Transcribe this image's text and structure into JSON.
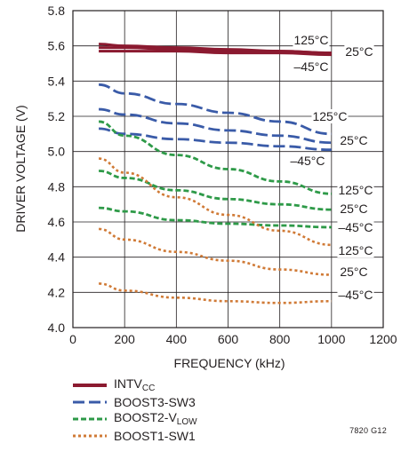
{
  "chart_data": {
    "type": "line",
    "title": "",
    "xlabel": "FREQUENCY (kHz)",
    "ylabel": "DRIVER VOLTAGE (V)",
    "xlim": [
      0,
      1200
    ],
    "ylim": [
      4.0,
      5.8
    ],
    "x_ticks": [
      "0",
      "200",
      "400",
      "600",
      "800",
      "1000",
      "1200"
    ],
    "y_ticks": [
      "4.0",
      "4.2",
      "4.4",
      "4.6",
      "4.8",
      "5.0",
      "5.2",
      "5.4",
      "5.6",
      "5.8"
    ],
    "grid": true,
    "legend_position": "bottom-left",
    "series": [
      {
        "name": "INTVCC",
        "name_main": "INTV",
        "name_sub": "CC",
        "style": "solid",
        "color": "#8b1a30",
        "temperature": "125°C",
        "x": [
          100,
          200,
          400,
          600,
          800,
          1000
        ],
        "y": [
          5.61,
          5.6,
          5.59,
          5.58,
          5.57,
          5.56
        ]
      },
      {
        "name": "INTVCC",
        "name_main": "INTV",
        "name_sub": "CC",
        "style": "solid",
        "color": "#8b1a30",
        "temperature": "25°C",
        "x": [
          100,
          200,
          400,
          600,
          800,
          1000
        ],
        "y": [
          5.59,
          5.59,
          5.58,
          5.57,
          5.57,
          5.56
        ]
      },
      {
        "name": "INTVCC",
        "name_main": "INTV",
        "name_sub": "CC",
        "style": "solid",
        "color": "#8b1a30",
        "temperature": "-45°C",
        "x": [
          100,
          200,
          400,
          600,
          800,
          1000
        ],
        "y": [
          5.57,
          5.57,
          5.57,
          5.56,
          5.56,
          5.55
        ]
      },
      {
        "name": "BOOST3-SW3",
        "style": "longdash",
        "color": "#3a5ba8",
        "temperature": "125°C",
        "x": [
          100,
          200,
          400,
          600,
          800,
          1000
        ],
        "y": [
          5.38,
          5.33,
          5.27,
          5.22,
          5.17,
          5.1
        ]
      },
      {
        "name": "BOOST3-SW3",
        "style": "longdash",
        "color": "#3a5ba8",
        "temperature": "25°C",
        "x": [
          100,
          200,
          400,
          600,
          800,
          1000
        ],
        "y": [
          5.24,
          5.21,
          5.16,
          5.12,
          5.09,
          5.05
        ]
      },
      {
        "name": "BOOST3-SW3",
        "style": "longdash",
        "color": "#3a5ba8",
        "temperature": "-45°C",
        "x": [
          100,
          200,
          400,
          600,
          800,
          1000
        ],
        "y": [
          5.13,
          5.1,
          5.07,
          5.05,
          5.03,
          5.01
        ]
      },
      {
        "name": "BOOST2-VLOW",
        "name_main": "BOOST2-V",
        "name_sub": "LOW",
        "style": "shortdash",
        "color": "#2e9a48",
        "temperature": "125°C",
        "x": [
          100,
          200,
          400,
          600,
          800,
          1000
        ],
        "y": [
          5.17,
          5.09,
          4.98,
          4.9,
          4.83,
          4.76
        ]
      },
      {
        "name": "BOOST2-VLOW",
        "name_main": "BOOST2-V",
        "name_sub": "LOW",
        "style": "shortdash",
        "color": "#2e9a48",
        "temperature": "25°C",
        "x": [
          100,
          200,
          400,
          600,
          800,
          1000
        ],
        "y": [
          4.89,
          4.85,
          4.78,
          4.73,
          4.7,
          4.67
        ]
      },
      {
        "name": "BOOST2-VLOW",
        "name_main": "BOOST2-V",
        "name_sub": "LOW",
        "style": "shortdash",
        "color": "#2e9a48",
        "temperature": "-45°C",
        "x": [
          100,
          200,
          400,
          600,
          800,
          1000
        ],
        "y": [
          4.68,
          4.66,
          4.61,
          4.59,
          4.58,
          4.57
        ]
      },
      {
        "name": "BOOST1-SW1",
        "style": "dotted",
        "color": "#d07a36",
        "temperature": "125°C",
        "x": [
          100,
          200,
          400,
          600,
          800,
          1000
        ],
        "y": [
          4.96,
          4.88,
          4.74,
          4.64,
          4.55,
          4.47
        ]
      },
      {
        "name": "BOOST1-SW1",
        "style": "dotted",
        "color": "#d07a36",
        "temperature": "25°C",
        "x": [
          100,
          200,
          400,
          600,
          800,
          1000
        ],
        "y": [
          4.56,
          4.5,
          4.43,
          4.38,
          4.33,
          4.3
        ]
      },
      {
        "name": "BOOST1-SW1",
        "style": "dotted",
        "color": "#d07a36",
        "temperature": "-45°C",
        "x": [
          100,
          200,
          400,
          600,
          800,
          1000
        ],
        "y": [
          4.25,
          4.21,
          4.17,
          4.15,
          4.14,
          4.15
        ]
      }
    ],
    "annotations": [
      {
        "text": "125°C",
        "group": "INTVCC"
      },
      {
        "text": "25°C",
        "group": "INTVCC"
      },
      {
        "text": "–45°C",
        "group": "INTVCC"
      },
      {
        "text": "125°C",
        "group": "BOOST3-SW3"
      },
      {
        "text": "25°C",
        "group": "BOOST3-SW3"
      },
      {
        "text": "–45°C",
        "group": "BOOST3-SW3"
      },
      {
        "text": "125°C",
        "group": "BOOST2-VLOW"
      },
      {
        "text": "25°C",
        "group": "BOOST2-VLOW"
      },
      {
        "text": "–45°C",
        "group": "BOOST2-VLOW"
      },
      {
        "text": "125°C",
        "group": "BOOST1-SW1"
      },
      {
        "text": "25°C",
        "group": "BOOST1-SW1"
      },
      {
        "text": "–45°C",
        "group": "BOOST1-SW1"
      }
    ]
  },
  "legend": [
    {
      "main": "INTV",
      "sub": "CC",
      "style": "solid",
      "color": "#8b1a30"
    },
    {
      "main": "BOOST3-SW3",
      "sub": "",
      "style": "longdash",
      "color": "#3a5ba8"
    },
    {
      "main": "BOOST2-V",
      "sub": "LOW",
      "style": "shortdash",
      "color": "#2e9a48"
    },
    {
      "main": "BOOST1-SW1",
      "sub": "",
      "style": "dotted",
      "color": "#d07a36"
    }
  ],
  "figure_id": "7820 G12"
}
